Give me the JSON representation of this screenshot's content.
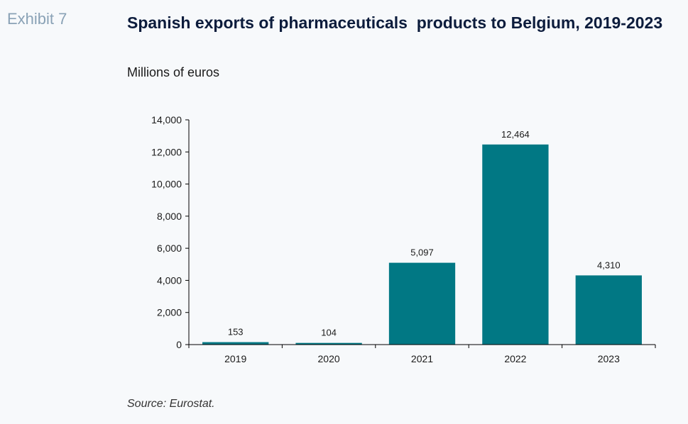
{
  "header": {
    "exhibit": "Exhibit 7",
    "title": "Spanish exports of pharmaceuticals  products to Belgium, 2019-2023",
    "subtitle": "Millions of euros"
  },
  "footer": {
    "source": "Source: Eurostat."
  },
  "colors": {
    "bar": "#017884",
    "axis": "#000000"
  },
  "chart_data": {
    "type": "bar",
    "title": "Spanish exports of pharmaceuticals  products to Belgium, 2019-2023",
    "ylabel": "",
    "xlabel": "",
    "categories": [
      "2019",
      "2020",
      "2021",
      "2022",
      "2023"
    ],
    "values": [
      153,
      104,
      5097,
      12464,
      4310
    ],
    "value_labels": [
      "153",
      "104",
      "5,097",
      "12,464",
      "4,310"
    ],
    "ylim": [
      0,
      14000
    ],
    "yticks": [
      0,
      2000,
      4000,
      6000,
      8000,
      10000,
      12000,
      14000
    ],
    "ytick_labels": [
      "0",
      "2,000",
      "4,000",
      "6,000",
      "8,000",
      "10,000",
      "12,000",
      "14,000"
    ],
    "grid": false,
    "legend": "none"
  }
}
